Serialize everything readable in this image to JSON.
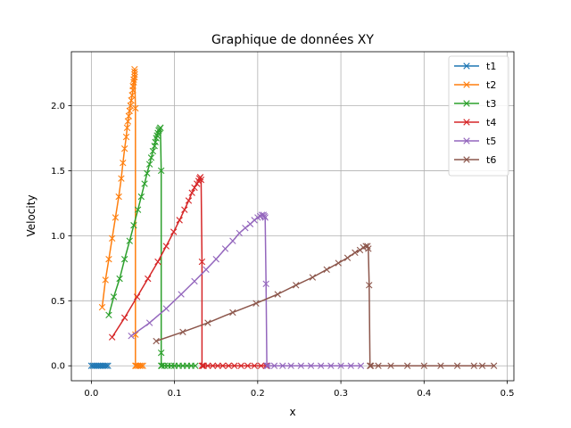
{
  "chart_data": {
    "type": "line",
    "title": "Graphique de données XY",
    "xlabel": "x",
    "ylabel": "Velocity",
    "xlim": [
      -0.024,
      0.508
    ],
    "ylim": [
      -0.115,
      2.415
    ],
    "xticks": [
      0.0,
      0.1,
      0.2,
      0.3,
      0.4,
      0.5
    ],
    "xtick_labels": [
      "0.0",
      "0.1",
      "0.2",
      "0.3",
      "0.4",
      "0.5"
    ],
    "yticks": [
      0.0,
      0.5,
      1.0,
      1.5,
      2.0
    ],
    "ytick_labels": [
      "0.0",
      "0.5",
      "1.0",
      "1.5",
      "2.0"
    ],
    "grid": true,
    "marker": "x",
    "legend_position": "top-right",
    "series": [
      {
        "name": "t1",
        "color": "#1f77b4",
        "x": [
          0.0,
          0.002,
          0.004,
          0.006,
          0.008,
          0.01,
          0.012,
          0.014,
          0.016,
          0.018,
          0.02
        ],
        "y": [
          0.0,
          0.0,
          0.0,
          0.0,
          0.0,
          0.0,
          0.0,
          0.0,
          0.0,
          0.0,
          0.0
        ]
      },
      {
        "name": "t2",
        "color": "#ff7f0e",
        "x": [
          0.013,
          0.017,
          0.021,
          0.025,
          0.029,
          0.033,
          0.036,
          0.038,
          0.04,
          0.042,
          0.043,
          0.044,
          0.045,
          0.046,
          0.047,
          0.048,
          0.049,
          0.05,
          0.05,
          0.051,
          0.051,
          0.052,
          0.052,
          0.052,
          0.052,
          0.053,
          0.053,
          0.053,
          0.054,
          0.056,
          0.058,
          0.06,
          0.062
        ],
        "y": [
          0.45,
          0.66,
          0.82,
          0.98,
          1.14,
          1.3,
          1.44,
          1.56,
          1.67,
          1.76,
          1.83,
          1.88,
          1.92,
          1.96,
          2.0,
          2.04,
          2.08,
          2.12,
          2.15,
          2.18,
          2.2,
          2.22,
          2.24,
          2.26,
          2.28,
          1.98,
          0.24,
          0.0,
          0.0,
          0.0,
          0.0,
          0.0,
          0.0
        ]
      },
      {
        "name": "t3",
        "color": "#2ca02c",
        "x": [
          0.021,
          0.027,
          0.034,
          0.04,
          0.046,
          0.051,
          0.056,
          0.06,
          0.064,
          0.067,
          0.07,
          0.072,
          0.074,
          0.076,
          0.077,
          0.078,
          0.079,
          0.08,
          0.081,
          0.082,
          0.083,
          0.083,
          0.084,
          0.084,
          0.084,
          0.085,
          0.088,
          0.092,
          0.096,
          0.1,
          0.105,
          0.11,
          0.115,
          0.12,
          0.125
        ],
        "y": [
          0.39,
          0.53,
          0.67,
          0.82,
          0.96,
          1.08,
          1.2,
          1.3,
          1.4,
          1.48,
          1.55,
          1.6,
          1.65,
          1.69,
          1.72,
          1.75,
          1.77,
          1.79,
          1.81,
          1.82,
          1.83,
          1.83,
          1.5,
          0.1,
          0.0,
          0.0,
          0.0,
          0.0,
          0.0,
          0.0,
          0.0,
          0.0,
          0.0,
          0.0,
          0.0
        ]
      },
      {
        "name": "t4",
        "color": "#d62728",
        "x": [
          0.025,
          0.04,
          0.055,
          0.068,
          0.08,
          0.09,
          0.099,
          0.106,
          0.112,
          0.117,
          0.121,
          0.124,
          0.127,
          0.129,
          0.13,
          0.131,
          0.132,
          0.133,
          0.133,
          0.134,
          0.135,
          0.14,
          0.146,
          0.152,
          0.158,
          0.165,
          0.172,
          0.18,
          0.188,
          0.196,
          0.204,
          0.21
        ],
        "y": [
          0.22,
          0.37,
          0.53,
          0.67,
          0.8,
          0.92,
          1.03,
          1.12,
          1.2,
          1.27,
          1.33,
          1.37,
          1.4,
          1.42,
          1.44,
          1.45,
          1.43,
          0.8,
          0.0,
          0.0,
          0.0,
          0.0,
          0.0,
          0.0,
          0.0,
          0.0,
          0.0,
          0.0,
          0.0,
          0.0,
          0.0,
          0.0
        ]
      },
      {
        "name": "t5",
        "color": "#9467bd",
        "x": [
          0.048,
          0.07,
          0.09,
          0.108,
          0.124,
          0.138,
          0.15,
          0.161,
          0.17,
          0.178,
          0.185,
          0.191,
          0.196,
          0.2,
          0.203,
          0.205,
          0.207,
          0.208,
          0.209,
          0.21,
          0.211,
          0.212,
          0.22,
          0.23,
          0.24,
          0.252,
          0.264,
          0.276,
          0.288,
          0.3,
          0.312,
          0.324
        ],
        "y": [
          0.23,
          0.33,
          0.44,
          0.55,
          0.65,
          0.74,
          0.82,
          0.9,
          0.96,
          1.02,
          1.06,
          1.09,
          1.12,
          1.14,
          1.15,
          1.16,
          1.16,
          1.15,
          1.14,
          0.63,
          0.0,
          0.0,
          0.0,
          0.0,
          0.0,
          0.0,
          0.0,
          0.0,
          0.0,
          0.0,
          0.0,
          0.0
        ]
      },
      {
        "name": "t6",
        "color": "#8c564b",
        "x": [
          0.078,
          0.11,
          0.14,
          0.17,
          0.198,
          0.224,
          0.246,
          0.266,
          0.283,
          0.297,
          0.308,
          0.317,
          0.323,
          0.327,
          0.33,
          0.332,
          0.333,
          0.334,
          0.335,
          0.336,
          0.345,
          0.36,
          0.38,
          0.4,
          0.42,
          0.44,
          0.46,
          0.47,
          0.484
        ],
        "y": [
          0.19,
          0.26,
          0.33,
          0.41,
          0.48,
          0.55,
          0.62,
          0.68,
          0.74,
          0.79,
          0.83,
          0.87,
          0.89,
          0.91,
          0.92,
          0.92,
          0.9,
          0.62,
          0.0,
          0.0,
          0.0,
          0.0,
          0.0,
          0.0,
          0.0,
          0.0,
          0.0,
          0.0,
          0.0
        ]
      }
    ]
  }
}
